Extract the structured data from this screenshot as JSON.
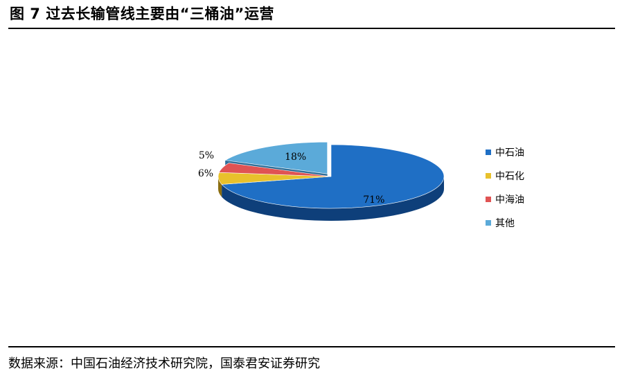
{
  "figure": {
    "title": "图 7 过去长输管线主要由“三桶油”运营",
    "source": "数据来源：中国石油经济技术研究院，国泰君安证券研究"
  },
  "chart_data": {
    "type": "pie",
    "title": "",
    "legend_position": "right",
    "slices": [
      {
        "name": "中石油",
        "value": 71,
        "label": "71%",
        "color": "#1F6FC5",
        "side_color": "#0E3F7A"
      },
      {
        "name": "中石化",
        "value": 6,
        "label": "6%",
        "color": "#E8C12C",
        "side_color": "#8A6D0F"
      },
      {
        "name": "中海油",
        "value": 5,
        "label": "5%",
        "color": "#E05353",
        "side_color": "#8E2A2A"
      },
      {
        "name": "其他",
        "value": 18,
        "label": "18%",
        "color": "#5BAAD9",
        "side_color": "#2E6F99"
      }
    ]
  }
}
